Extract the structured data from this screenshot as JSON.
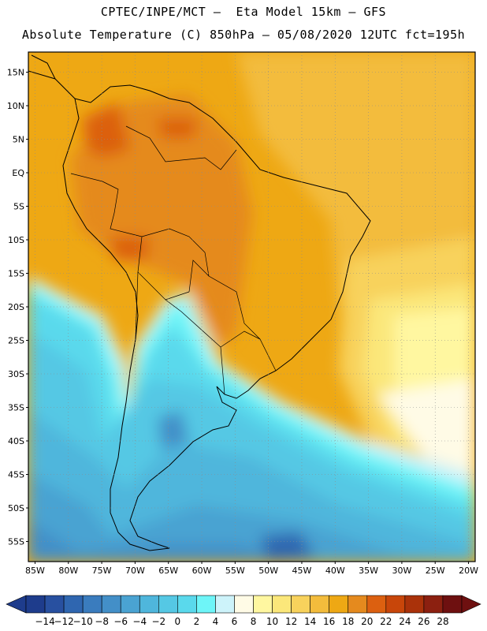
{
  "header": {
    "line1": "CPTEC/INPE/MCT –  Eta Model 15km – GFS",
    "line2": "Absolute Temperature (C) 850hPa – 05/08/2020 12UTC fct=195h"
  },
  "map": {
    "lat_range": [
      -58,
      18
    ],
    "lon_range": [
      -86,
      -19
    ],
    "lat_ticks": [
      "15N",
      "10N",
      "5N",
      "EQ",
      "5S",
      "10S",
      "15S",
      "20S",
      "25S",
      "30S",
      "35S",
      "40S",
      "45S",
      "50S",
      "55S"
    ],
    "lat_values": [
      15,
      10,
      5,
      0,
      -5,
      -10,
      -15,
      -20,
      -25,
      -30,
      -35,
      -40,
      -45,
      -50,
      -55
    ],
    "lon_ticks": [
      "85W",
      "80W",
      "75W",
      "70W",
      "65W",
      "60W",
      "55W",
      "50W",
      "45W",
      "40W",
      "35W",
      "30W",
      "25W",
      "20W"
    ],
    "lon_values": [
      -85,
      -80,
      -75,
      -70,
      -65,
      -60,
      -55,
      -50,
      -45,
      -40,
      -35,
      -30,
      -25,
      -20
    ],
    "grid": true
  },
  "colorbar": {
    "labels": [
      "-14",
      "-12",
      "-10",
      "-8",
      "-6",
      "-4",
      "-2",
      "0",
      "2",
      "4",
      "6",
      "8",
      "10",
      "12",
      "14",
      "16",
      "18",
      "20",
      "22",
      "24",
      "26",
      "28"
    ],
    "colors": [
      "#1e3c8c",
      "#2850a0",
      "#2f66b0",
      "#3a7cbe",
      "#438fc8",
      "#4aa3d2",
      "#4fb6dc",
      "#55c8e4",
      "#5ad9ec",
      "#6ef5f8",
      "#cdf3fa",
      "#fffbe6",
      "#fff7a0",
      "#fbe77a",
      "#f8d25c",
      "#f3bc3c",
      "#eea814",
      "#e58a1e",
      "#dc6010",
      "#c8460a",
      "#aa320a",
      "#8c2010",
      "#6e1010"
    ]
  }
}
